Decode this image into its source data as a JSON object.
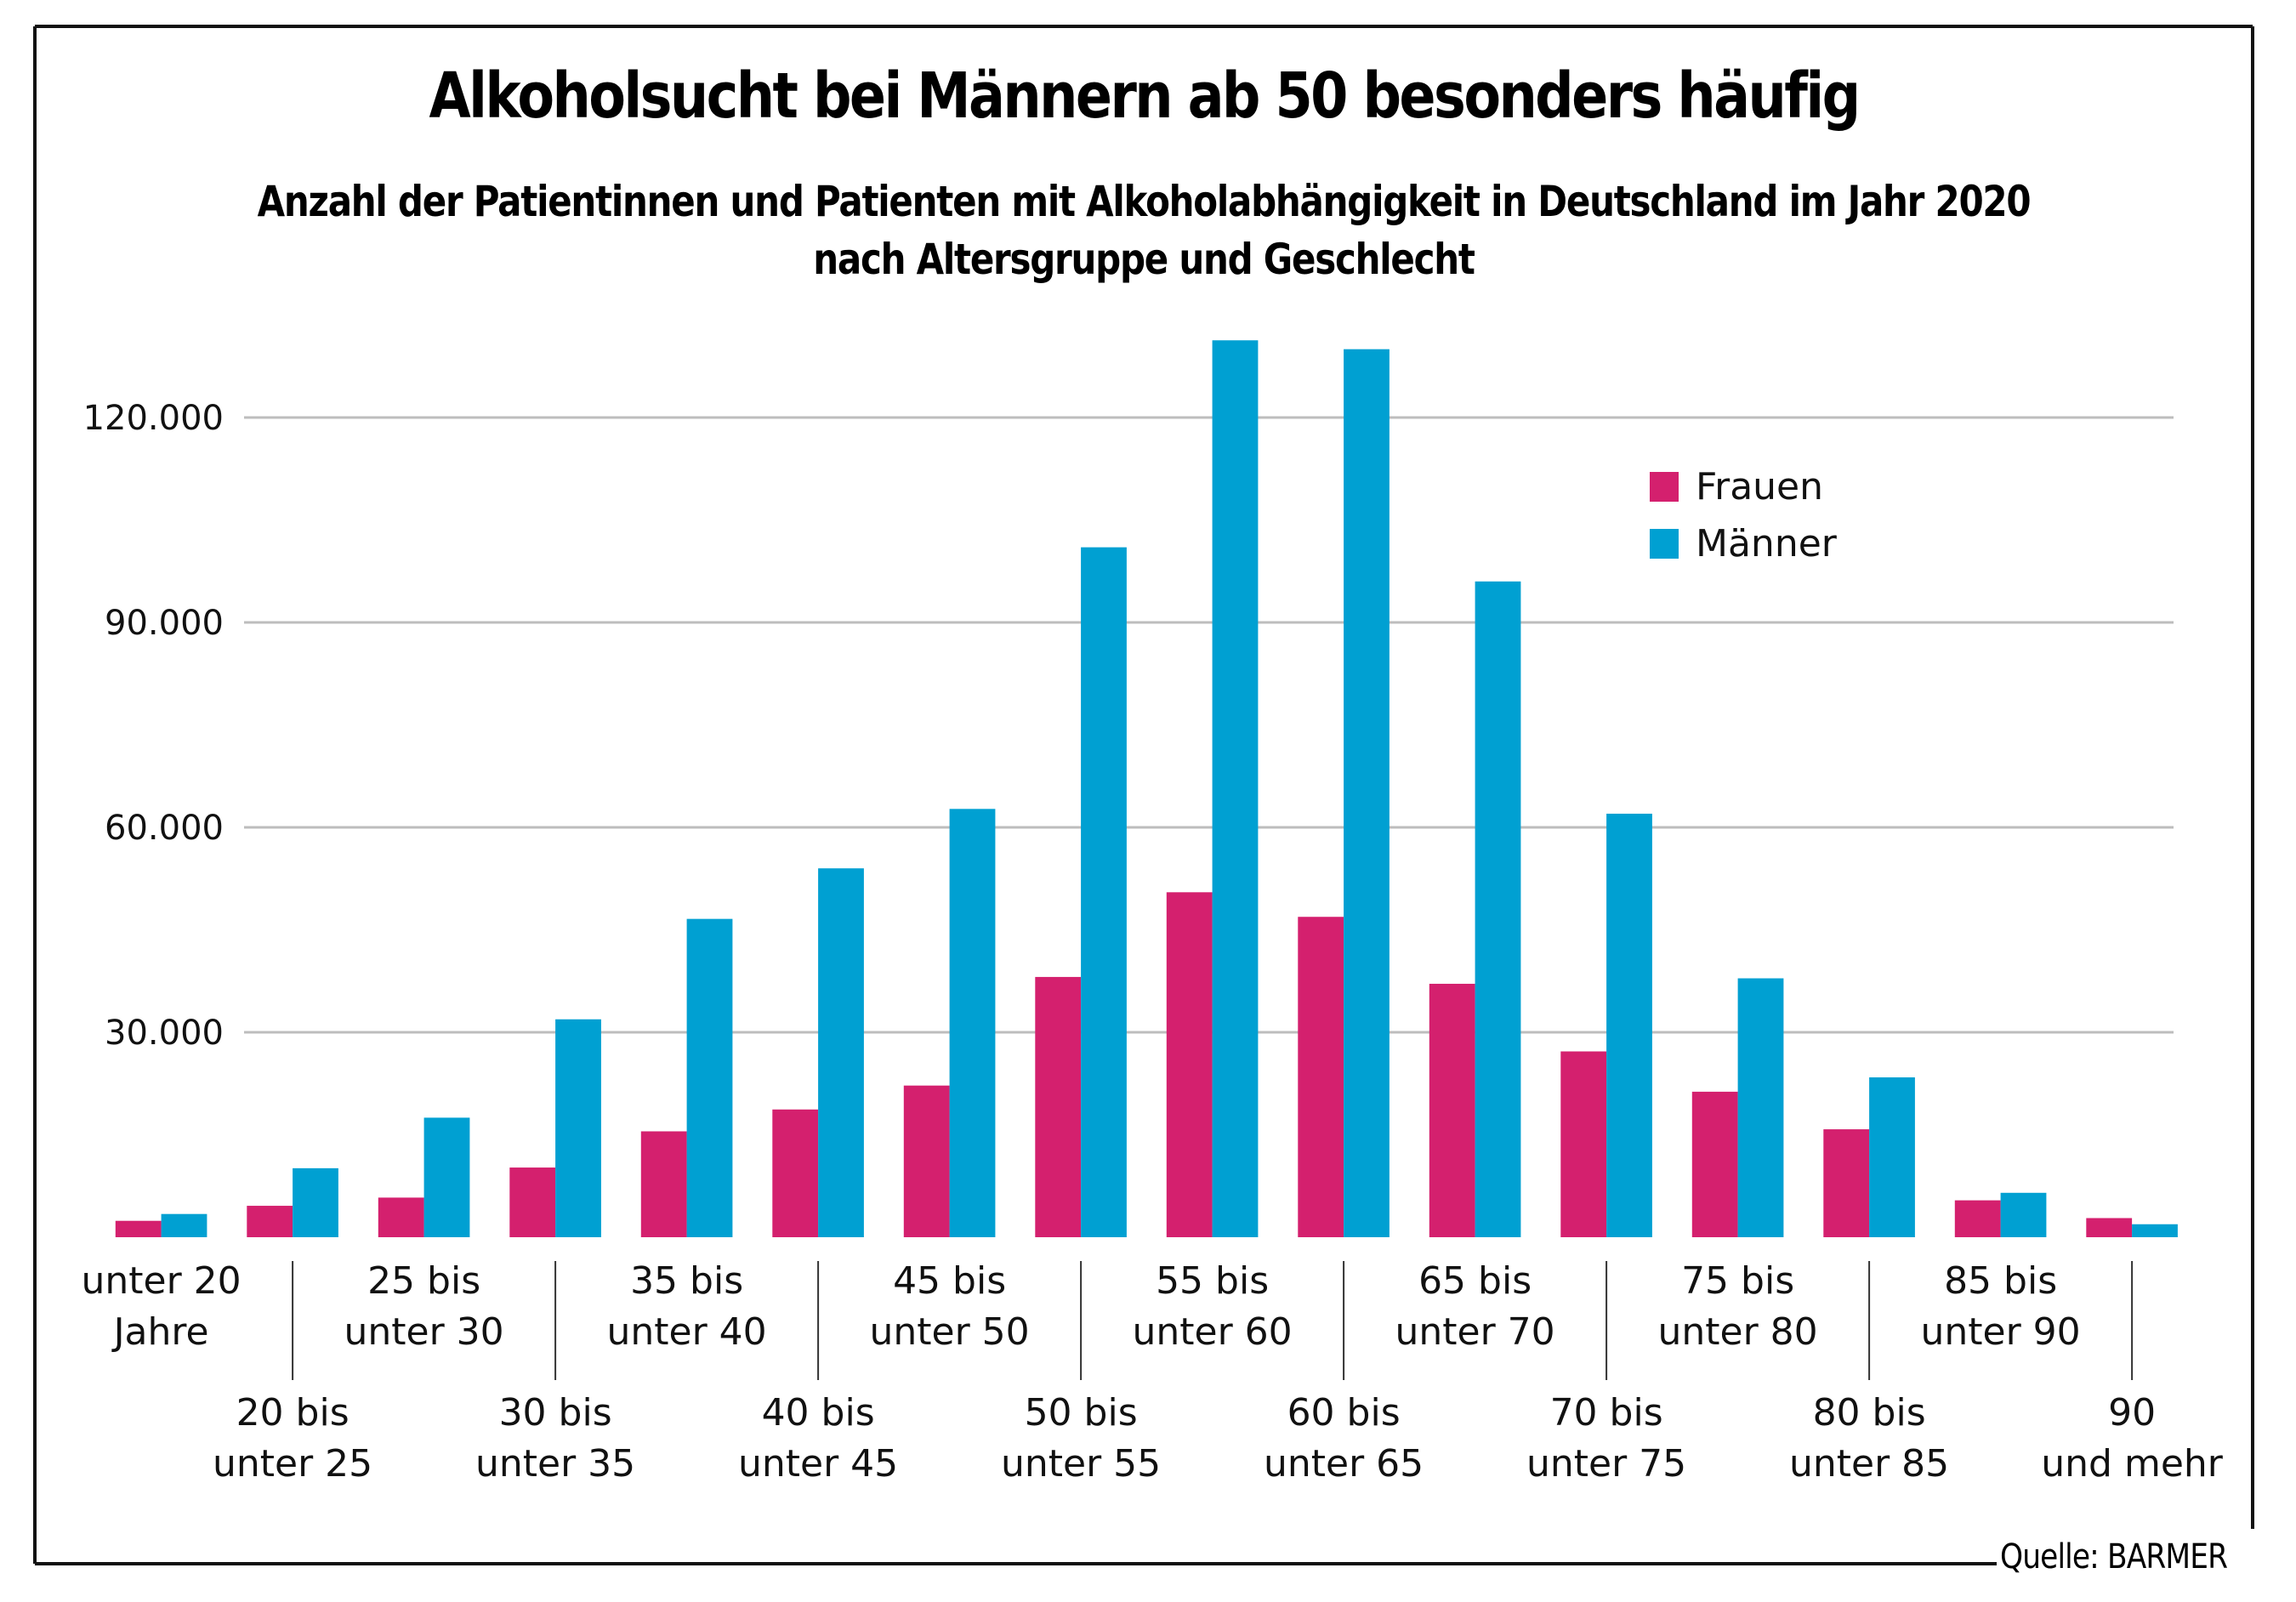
{
  "chart_data": {
    "type": "bar",
    "title": "Alkoholsucht bei Männern ab 50 besonders häufig",
    "subtitle": [
      "Anzahl der Patientinnen und Patienten mit Alkoholabhängigkeit in Deutschland im Jahr 2020",
      "nach Altersgruppe und Geschlecht"
    ],
    "xlabel": "",
    "ylabel": "",
    "ylim": [
      0,
      130000
    ],
    "yticks": [
      30000,
      60000,
      90000,
      120000
    ],
    "ytick_labels": [
      "30.000",
      "60.000",
      "90.000",
      "120.000"
    ],
    "grid": true,
    "legend_position": "top-right",
    "categories": [
      [
        "unter 20",
        "Jahre"
      ],
      [
        "20 bis",
        "unter 25"
      ],
      [
        "25 bis",
        "unter 30"
      ],
      [
        "30 bis",
        "unter 35"
      ],
      [
        "35 bis",
        "unter 40"
      ],
      [
        "40 bis",
        "unter 45"
      ],
      [
        "45 bis",
        "unter 50"
      ],
      [
        "50 bis",
        "unter 55"
      ],
      [
        "55 bis",
        "unter 60"
      ],
      [
        "60 bis",
        "unter 65"
      ],
      [
        "65 bis",
        "unter 70"
      ],
      [
        "70 bis",
        "unter 75"
      ],
      [
        "75 bis",
        "unter 80"
      ],
      [
        "80 bis",
        "unter 85"
      ],
      [
        "85 bis",
        "unter 90"
      ],
      [
        "90",
        "und mehr"
      ]
    ],
    "series": [
      {
        "name": "Frauen",
        "color": "#d4206e",
        "values": [
          2400,
          4600,
          5800,
          10200,
          15500,
          18700,
          22200,
          38100,
          50500,
          46900,
          37100,
          27200,
          21300,
          15800,
          5400,
          2800
        ]
      },
      {
        "name": "Männer",
        "color": "#00a0d2",
        "values": [
          3400,
          10100,
          17500,
          31900,
          46600,
          54000,
          62700,
          101000,
          131300,
          130000,
          96000,
          62000,
          37900,
          23400,
          6500,
          1900
        ]
      }
    ],
    "source": "Quelle: BARMER"
  }
}
